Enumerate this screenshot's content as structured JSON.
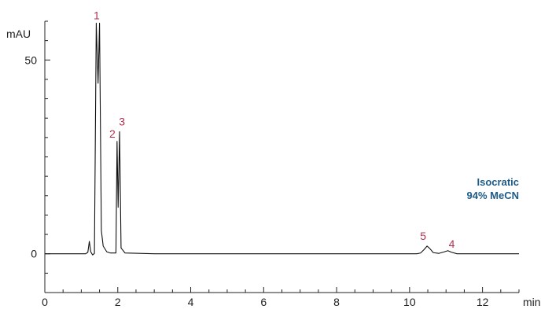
{
  "chart_data": {
    "type": "line",
    "xlabel": "min",
    "ylabel": "mAU",
    "xlim": [
      0,
      13
    ],
    "ylim": [
      -10,
      60
    ],
    "x_ticks": [
      0,
      2,
      4,
      6,
      8,
      10,
      12
    ],
    "y_ticks": [
      0,
      50
    ],
    "grid": false,
    "annotation": [
      "Isocratic",
      "94% MeCN"
    ],
    "colors": {
      "trace": "#111111",
      "axis": "#222222",
      "peak_label": "#b0314f",
      "annotation": "#1d5b87"
    },
    "series": [
      {
        "points": [
          [
            0,
            0
          ],
          [
            1.12,
            0
          ],
          [
            1.18,
            0.4
          ],
          [
            1.22,
            3.2
          ],
          [
            1.26,
            0.5
          ],
          [
            1.31,
            -0.3
          ],
          [
            1.36,
            0.1
          ],
          [
            1.41,
            59.5
          ],
          [
            1.46,
            44
          ],
          [
            1.5,
            59.5
          ],
          [
            1.55,
            6
          ],
          [
            1.6,
            2
          ],
          [
            1.7,
            0.5
          ],
          [
            1.8,
            0.2
          ],
          [
            1.95,
            0.2
          ],
          [
            1.98,
            29
          ],
          [
            2.01,
            12
          ],
          [
            2.05,
            31.5
          ],
          [
            2.09,
            1.5
          ],
          [
            2.2,
            0.2
          ],
          [
            3.0,
            0
          ],
          [
            5.0,
            0
          ],
          [
            8.0,
            0
          ],
          [
            10.2,
            0
          ],
          [
            10.3,
            0.2
          ],
          [
            10.4,
            1.1
          ],
          [
            10.48,
            2.0
          ],
          [
            10.55,
            1.4
          ],
          [
            10.65,
            0.3
          ],
          [
            10.8,
            0.1
          ],
          [
            10.95,
            0.5
          ],
          [
            11.05,
            0.8
          ],
          [
            11.15,
            0.4
          ],
          [
            11.3,
            0
          ],
          [
            13.0,
            0
          ]
        ]
      }
    ],
    "peaks": [
      {
        "label": "1",
        "x": 1.42,
        "y": 59.5
      },
      {
        "label": "2",
        "x": 1.98,
        "y": 29
      },
      {
        "label": "3",
        "x": 2.05,
        "y": 31.5
      },
      {
        "label": "5",
        "x": 10.48,
        "y": 2.0
      },
      {
        "label": "4",
        "x": 11.05,
        "y": 0.8
      }
    ]
  }
}
